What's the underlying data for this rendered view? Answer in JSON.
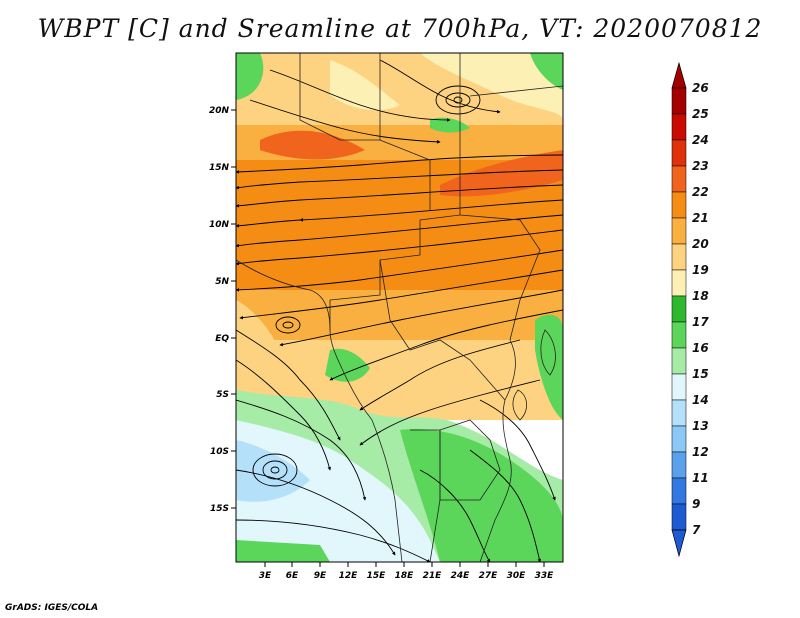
{
  "title": "WBPT [C] and Sreamline at 700hPa, VT: 2020070812",
  "credit": "GrADS: IGES/COLA",
  "map": {
    "lon_labels": [
      "3E",
      "6E",
      "9E",
      "12E",
      "15E",
      "18E",
      "21E",
      "24E",
      "27E",
      "30E",
      "33E"
    ],
    "lat_labels": [
      "20N",
      "15N",
      "10N",
      "5N",
      "EQ",
      "5S",
      "10S",
      "15S"
    ]
  },
  "colorbar": {
    "labels": [
      "26",
      "25",
      "24",
      "23",
      "22",
      "21",
      "20",
      "19",
      "18",
      "17",
      "16",
      "15",
      "14",
      "13",
      "12",
      "11",
      "9",
      "7"
    ],
    "colors": [
      "#a50000",
      "#c80a00",
      "#e0320a",
      "#f0641e",
      "#f58c14",
      "#f9b041",
      "#fdd280",
      "#fdf0b4",
      "#2eb82e",
      "#5bd65b",
      "#a6eba6",
      "#e1f7fc",
      "#b4e0fa",
      "#8cc8f5",
      "#5aa0eb",
      "#3278e1",
      "#1e5ad2"
    ],
    "top_color": "#a50000",
    "bottom_color": "#1e5ad2"
  }
}
